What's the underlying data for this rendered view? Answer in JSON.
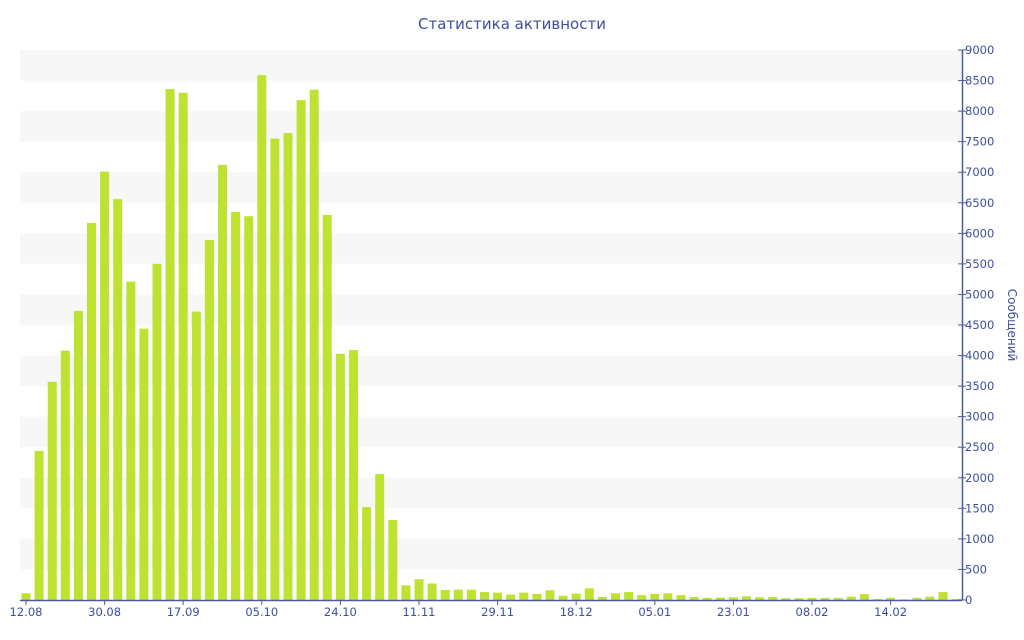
{
  "chart_data": {
    "type": "bar",
    "title": "Статистика активности",
    "xlabel": "",
    "ylabel": "Сообщений",
    "ylim": [
      0,
      9000
    ],
    "ytick_step": 500,
    "yaxis_side": "right",
    "grid": "alternating horizontal bands",
    "x": [
      1,
      2,
      3,
      4,
      5,
      6,
      7,
      8,
      9,
      10,
      11,
      12,
      13,
      14,
      15,
      16,
      17,
      18,
      19,
      20,
      21,
      22,
      23,
      24,
      25,
      26,
      27,
      28,
      29,
      30,
      31,
      32,
      33,
      34,
      35,
      36,
      37,
      38,
      39,
      40,
      41,
      42,
      43,
      44,
      45,
      46,
      47,
      48,
      49,
      50,
      51,
      52,
      53,
      54,
      55,
      56,
      57,
      58,
      59,
      60,
      61,
      62,
      63,
      64,
      65,
      66,
      67,
      68,
      69,
      70,
      71,
      72
    ],
    "values": [
      110,
      2440,
      3570,
      4080,
      4730,
      6170,
      7010,
      6560,
      5210,
      4440,
      5500,
      8360,
      8300,
      4720,
      5890,
      7120,
      6350,
      6280,
      8590,
      7550,
      7640,
      8180,
      8350,
      6300,
      4030,
      4090,
      1520,
      2060,
      1310,
      240,
      340,
      270,
      165,
      170,
      170,
      130,
      120,
      90,
      120,
      100,
      160,
      70,
      105,
      190,
      50,
      110,
      130,
      80,
      100,
      110,
      80,
      50,
      35,
      40,
      45,
      60,
      45,
      50,
      30,
      30,
      35,
      35,
      35,
      55,
      95,
      15,
      35,
      10,
      35,
      55,
      130,
      15
    ],
    "xticks": [
      {
        "index": 1,
        "label": "12.08"
      },
      {
        "index": 7,
        "label": "30.08"
      },
      {
        "index": 13,
        "label": "17.09"
      },
      {
        "index": 19,
        "label": "05.10"
      },
      {
        "index": 25,
        "label": "24.10"
      },
      {
        "index": 31,
        "label": "11.11"
      },
      {
        "index": 37,
        "label": "29.11"
      },
      {
        "index": 43,
        "label": "18.12"
      },
      {
        "index": 49,
        "label": "05.01"
      },
      {
        "index": 55,
        "label": "23.01"
      },
      {
        "index": 61,
        "label": "08.02"
      },
      {
        "index": 67,
        "label": "14.02"
      }
    ],
    "colors": {
      "bar": "#bde232",
      "axis": "#4a5aa8",
      "band": "#f7f7f7",
      "text": "#3d4f9e"
    }
  }
}
